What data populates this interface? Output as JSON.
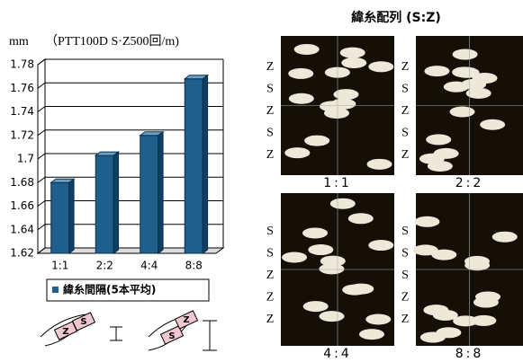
{
  "chart_data": {
    "type": "bar",
    "unit_label": "mm",
    "subtitle": "（PTT100D  S·Z500回/m)",
    "categories": [
      "1:1",
      "2:2",
      "4:4",
      "8:8"
    ],
    "series": [
      {
        "name": "緯糸間隔(5本平均)",
        "color": "#1f5f8e",
        "values": [
          1.68,
          1.703,
          1.72,
          1.768
        ]
      }
    ],
    "ylim": [
      1.62,
      1.78
    ],
    "yticks": [
      1.62,
      1.64,
      1.66,
      1.68,
      1.7,
      1.72,
      1.74,
      1.76,
      1.78
    ],
    "grid": true
  },
  "panels_title": "緯糸配列 (S:Z)",
  "panels": [
    {
      "label": "1:1",
      "sides": [
        "Z",
        "S",
        "Z",
        "S",
        "Z"
      ]
    },
    {
      "label": "2:2",
      "sides": [
        "Z",
        "S",
        "Z",
        "S",
        "Z"
      ]
    },
    {
      "label": "4:4",
      "sides": [
        "S",
        "S",
        "Z",
        "Z",
        "Z"
      ]
    },
    {
      "label": "8:8",
      "sides": [
        "S",
        "S",
        "S",
        "Z",
        "Z"
      ]
    }
  ],
  "icons": [
    [
      "Z",
      "S"
    ],
    [
      "S",
      "Z"
    ]
  ]
}
